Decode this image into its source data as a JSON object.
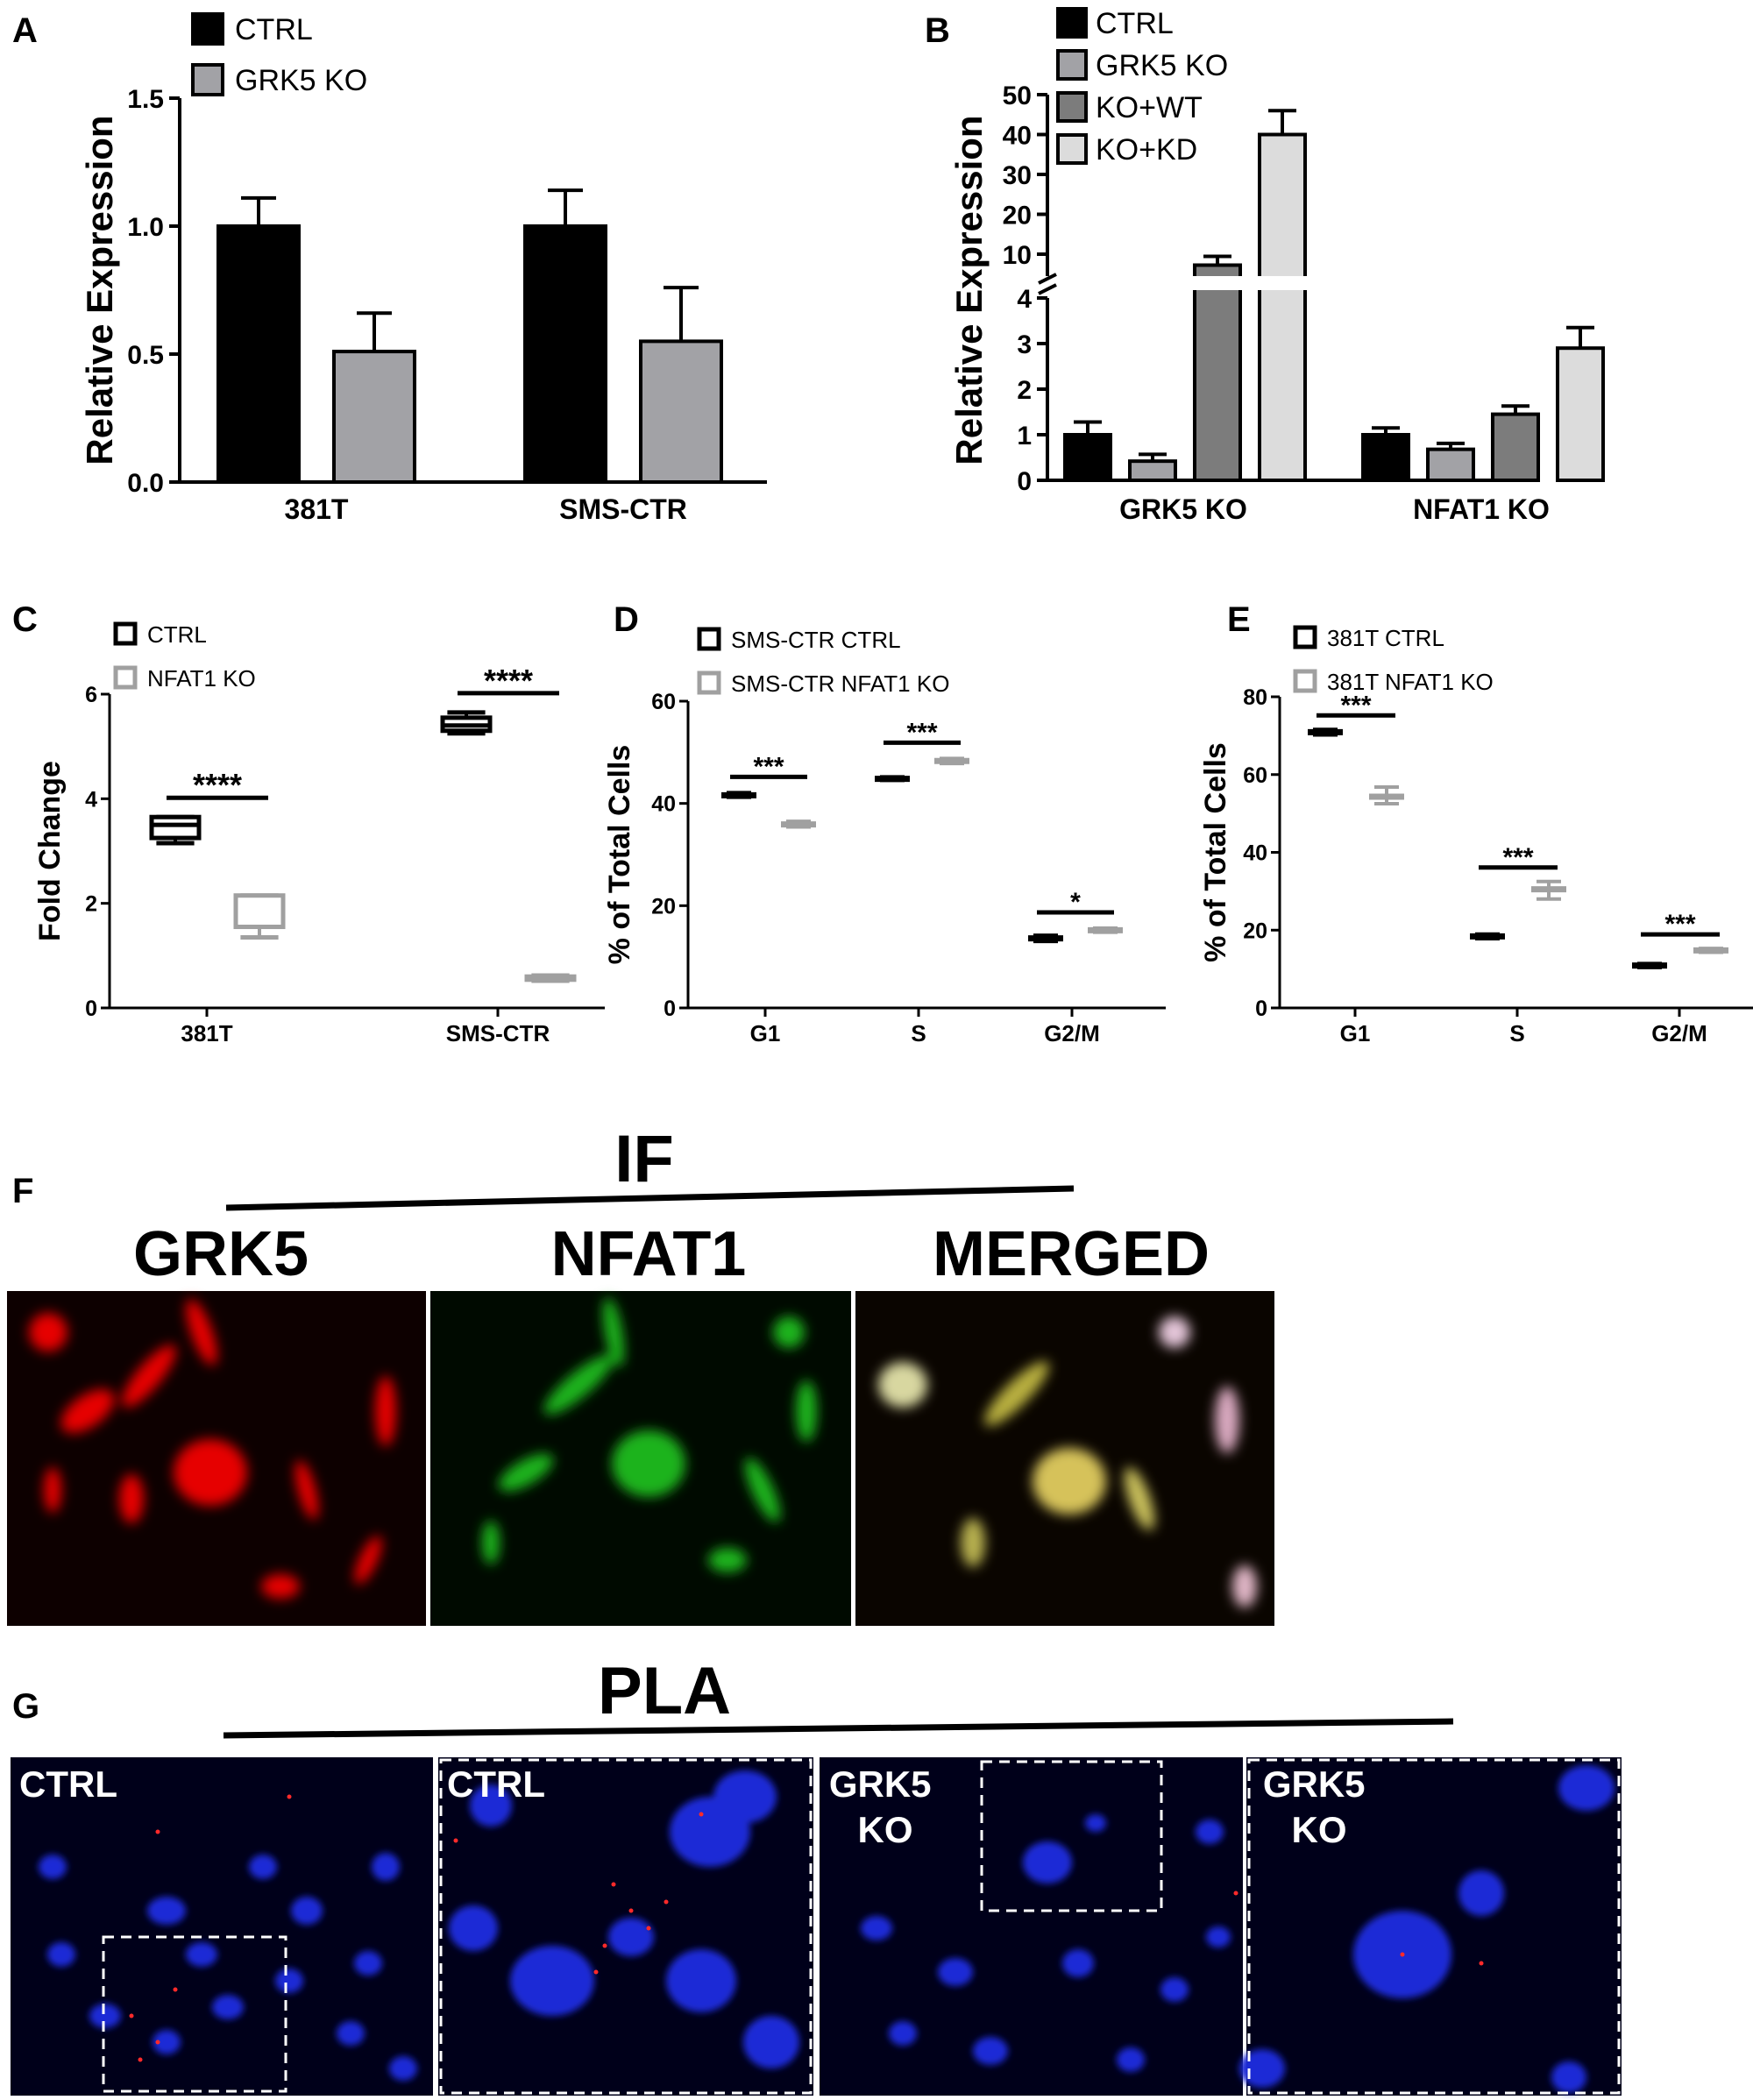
{
  "panels": {
    "A": {
      "letter": "A"
    },
    "B": {
      "letter": "B"
    },
    "C": {
      "letter": "C"
    },
    "D": {
      "letter": "D"
    },
    "E": {
      "letter": "E"
    },
    "F": {
      "letter": "F",
      "header": "IF",
      "titles": [
        "GRK5",
        "NFAT1",
        "MERGED"
      ]
    },
    "G": {
      "letter": "G",
      "header": "PLA",
      "labels": [
        "CTRL",
        "CTRL",
        "GRK5 KO",
        "GRK5 KO"
      ]
    }
  },
  "colors": {
    "ctrl": "#000000",
    "grk5ko": "#a2a2a6",
    "kowt": "#7c7c7c",
    "kokd": "#dcdcdc",
    "ko_box": "#a0a0a0"
  },
  "chart_data": [
    {
      "panel": "A",
      "type": "bar",
      "categories": [
        "381T",
        "SMS-CTR"
      ],
      "ylabel": "Relative Expression",
      "ylim": [
        0,
        1.5
      ],
      "yticks": [
        "0.0",
        "0.5",
        "1.0",
        "1.5"
      ],
      "series": [
        {
          "name": "CTRL",
          "values": [
            1.0,
            1.0
          ],
          "errors": [
            0.11,
            0.14
          ]
        },
        {
          "name": "GRK5 KO",
          "values": [
            0.51,
            0.55
          ],
          "errors": [
            0.15,
            0.21
          ]
        }
      ]
    },
    {
      "panel": "B",
      "type": "bar",
      "categories": [
        "GRK5 KO",
        "NFAT1 KO"
      ],
      "ylabel": "Relative Expression",
      "broken_axis": {
        "lower": [
          0,
          4
        ],
        "upper": [
          10,
          50
        ]
      },
      "yticks_lower": [
        "0",
        "1",
        "2",
        "3",
        "4"
      ],
      "yticks_upper": [
        "10",
        "20",
        "30",
        "40",
        "50"
      ],
      "series": [
        {
          "name": "CTRL",
          "values": [
            1.0,
            1.0
          ],
          "errors": [
            0.28,
            0.15
          ]
        },
        {
          "name": "GRK5 KO",
          "values": [
            0.42,
            0.68
          ],
          "errors": [
            0.15,
            0.13
          ]
        },
        {
          "name": "KO+WT",
          "values": [
            8.5,
            1.45
          ],
          "errors": [
            1.2,
            0.18
          ]
        },
        {
          "name": "KO+KD",
          "values": [
            40,
            2.9
          ],
          "errors": [
            6,
            0.45
          ]
        }
      ]
    },
    {
      "panel": "C",
      "type": "box",
      "categories": [
        "381T",
        "SMS-CTR"
      ],
      "ylabel": "Fold Change",
      "ylim": [
        0,
        6
      ],
      "yticks": [
        "0",
        "2",
        "4",
        "6"
      ],
      "series": [
        {
          "name": "CTRL",
          "boxes": [
            {
              "min": 3.15,
              "q1": 3.25,
              "median": 3.5,
              "q3": 3.65,
              "max": 3.65
            },
            {
              "min": 5.25,
              "q1": 5.3,
              "median": 5.4,
              "q3": 5.55,
              "max": 5.65
            }
          ]
        },
        {
          "name": "NFAT1 KO",
          "boxes": [
            {
              "min": 1.35,
              "q1": 1.55,
              "median": 1.55,
              "q3": 2.15,
              "max": 2.15
            },
            {
              "min": 0.52,
              "q1": 0.54,
              "median": 0.57,
              "q3": 0.6,
              "max": 0.62
            }
          ]
        }
      ],
      "significance": [
        "****",
        "****"
      ]
    },
    {
      "panel": "D",
      "type": "box",
      "categories": [
        "G1",
        "S",
        "G2/M"
      ],
      "ylabel": "% of Total Cells",
      "ylim": [
        0,
        60
      ],
      "yticks": [
        "0",
        "20",
        "40",
        "60"
      ],
      "series": [
        {
          "name": "SMS-CTR CTRL",
          "boxes": [
            {
              "min": 41.2,
              "median": 41.6,
              "max": 42.1
            },
            {
              "min": 44.5,
              "median": 44.8,
              "max": 45.2
            },
            {
              "min": 13.0,
              "median": 13.6,
              "max": 14.2
            }
          ]
        },
        {
          "name": "SMS-CTR NFAT1 KO",
          "boxes": [
            {
              "min": 35.4,
              "median": 35.9,
              "max": 36.5
            },
            {
              "min": 47.8,
              "median": 48.3,
              "max": 48.8
            },
            {
              "min": 14.8,
              "median": 15.2,
              "max": 15.6
            }
          ]
        }
      ],
      "significance": [
        "***",
        "***",
        "*"
      ]
    },
    {
      "panel": "E",
      "type": "box",
      "categories": [
        "G1",
        "S",
        "G2/M"
      ],
      "ylabel": "% of Total Cells",
      "ylim": [
        0,
        80
      ],
      "yticks": [
        "0",
        "20",
        "40",
        "60",
        "80"
      ],
      "series": [
        {
          "name": "381T CTRL",
          "boxes": [
            {
              "min": 70.2,
              "median": 70.9,
              "max": 71.6
            },
            {
              "min": 17.8,
              "median": 18.4,
              "max": 19.0
            },
            {
              "min": 10.4,
              "median": 10.9,
              "max": 11.4
            }
          ]
        },
        {
          "name": "381T NFAT1 KO",
          "boxes": [
            {
              "min": 52.5,
              "median": 54.3,
              "max": 56.8
            },
            {
              "min": 28.0,
              "median": 30.5,
              "max": 32.5
            },
            {
              "min": 14.3,
              "median": 14.8,
              "max": 15.3
            }
          ]
        }
      ],
      "significance": [
        "***",
        "***",
        "***"
      ]
    }
  ]
}
